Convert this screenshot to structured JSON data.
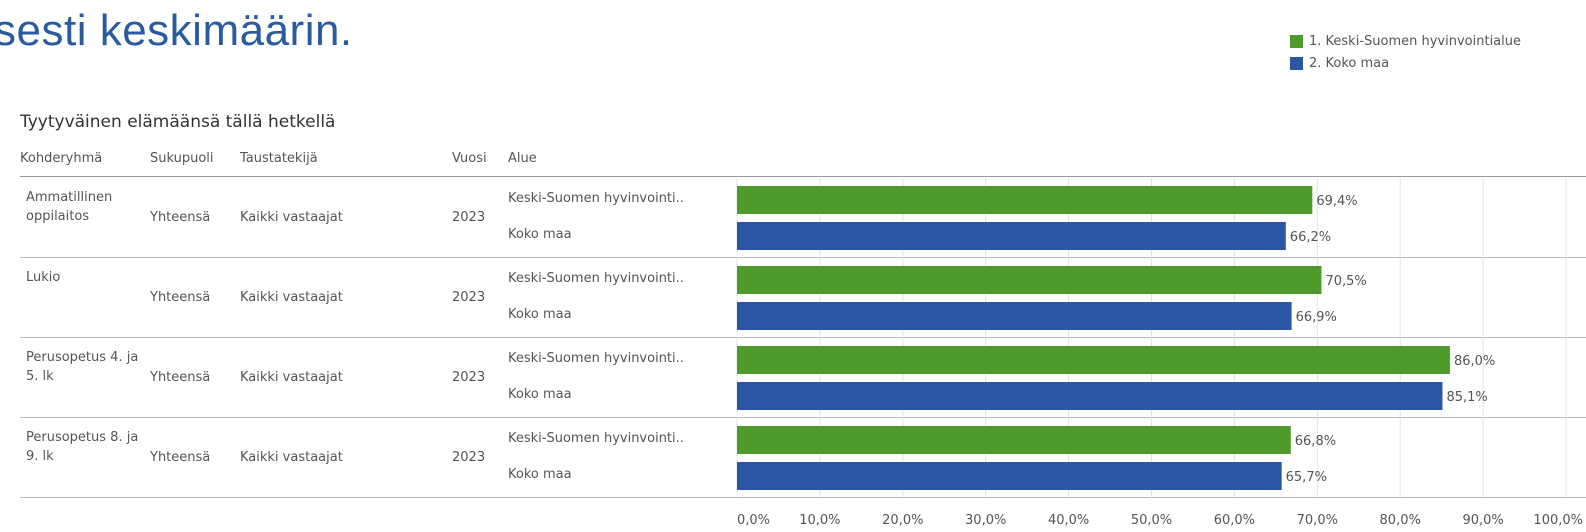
{
  "heading": "sesti keskimäärin.",
  "colors": {
    "series1": "#4e9a2a",
    "series2": "#2b56a3",
    "heading": "#2a5aa0",
    "grid": "#e3e3e3"
  },
  "chart_data": {
    "type": "bar",
    "orientation": "horizontal",
    "title": "Tyytyväinen elämäänsä tällä hetkellä",
    "columns": [
      "Kohderyhmä",
      "Sukupuoli",
      "Taustatekijä",
      "Vuosi",
      "Alue"
    ],
    "legend": {
      "position": "top-right",
      "entries": [
        "1. Keski-Suomen hyvinvointialue",
        "2. Koko maa"
      ]
    },
    "series": [
      {
        "name": "1. Keski-Suomen hyvinvointialue",
        "color": "#4e9a2a"
      },
      {
        "name": "2. Koko maa",
        "color": "#2b56a3"
      }
    ],
    "groups": [
      {
        "kohderyhma": "Ammatillinen oppilaitos",
        "sukupuoli": "Yhteensä",
        "taustatekija": "Kaikki vastaajat",
        "vuosi": "2023",
        "bars": [
          {
            "alue": "Keski-Suomen hyvinvointi..",
            "value": 69.4,
            "label": "69,4%"
          },
          {
            "alue": "Koko maa",
            "value": 66.2,
            "label": "66,2%"
          }
        ]
      },
      {
        "kohderyhma": "Lukio",
        "sukupuoli": "Yhteensä",
        "taustatekija": "Kaikki vastaajat",
        "vuosi": "2023",
        "bars": [
          {
            "alue": "Keski-Suomen hyvinvointi..",
            "value": 70.5,
            "label": "70,5%"
          },
          {
            "alue": "Koko maa",
            "value": 66.9,
            "label": "66,9%"
          }
        ]
      },
      {
        "kohderyhma": "Perusopetus 4. ja 5. lk",
        "sukupuoli": "Yhteensä",
        "taustatekija": "Kaikki vastaajat",
        "vuosi": "2023",
        "bars": [
          {
            "alue": "Keski-Suomen hyvinvointi..",
            "value": 86.0,
            "label": "86,0%"
          },
          {
            "alue": "Koko maa",
            "value": 85.1,
            "label": "85,1%"
          }
        ]
      },
      {
        "kohderyhma": "Perusopetus 8. ja 9. lk",
        "sukupuoli": "Yhteensä",
        "taustatekija": "Kaikki vastaajat",
        "vuosi": "2023",
        "bars": [
          {
            "alue": "Keski-Suomen hyvinvointi..",
            "value": 66.8,
            "label": "66,8%"
          },
          {
            "alue": "Koko maa",
            "value": 65.7,
            "label": "65,7%"
          }
        ]
      }
    ],
    "xlim": [
      0,
      100
    ],
    "xticks": [
      0,
      10,
      20,
      30,
      40,
      50,
      60,
      70,
      80,
      90,
      100
    ],
    "xtick_labels": [
      "0,0%",
      "10,0%",
      "20,0%",
      "30,0%",
      "40,0%",
      "50,0%",
      "60,0%",
      "70,0%",
      "80,0%",
      "90,0%",
      "100,0%"
    ],
    "grid": true
  }
}
